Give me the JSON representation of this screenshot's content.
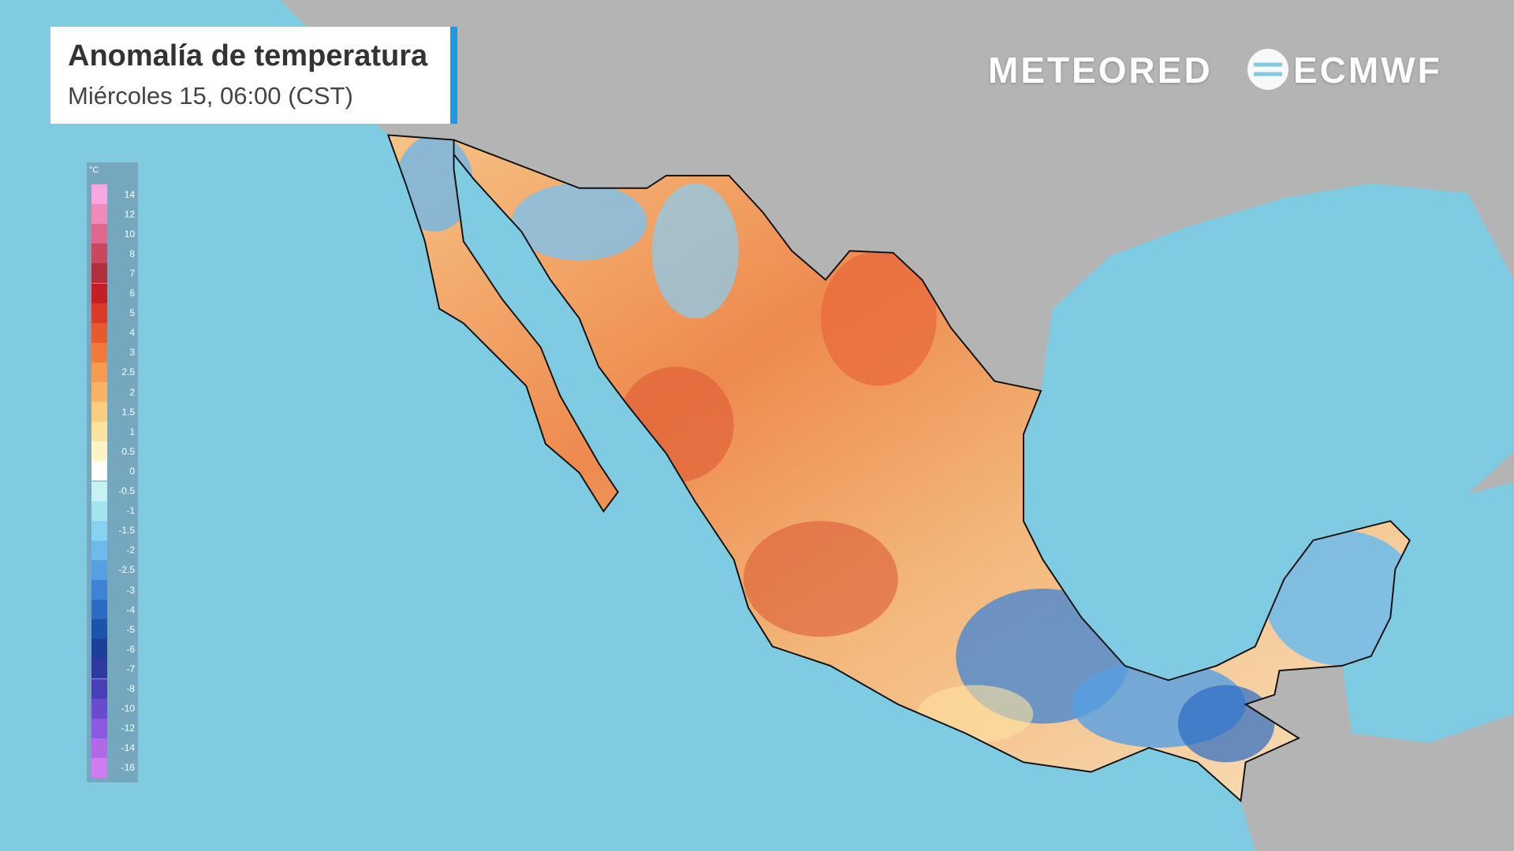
{
  "header": {
    "title": "Anomalía de temperatura",
    "subtitle": "Miércoles 15, 06:00 (CST)"
  },
  "brands": {
    "left": "METEORED",
    "right": "ECMWF"
  },
  "legend": {
    "unit": "°C",
    "items": [
      {
        "label": 14,
        "color": "#f7a8e0"
      },
      {
        "label": 12,
        "color": "#f08ab8"
      },
      {
        "label": 10,
        "color": "#e0688e"
      },
      {
        "label": 8,
        "color": "#c9485e"
      },
      {
        "label": 7,
        "color": "#b32f3e"
      },
      {
        "label": 6,
        "color": "#c41f24"
      },
      {
        "label": 5,
        "color": "#db3a26"
      },
      {
        "label": 4,
        "color": "#e85a2e"
      },
      {
        "label": 3,
        "color": "#f07a3a"
      },
      {
        "label": 2.5,
        "color": "#f59a4e"
      },
      {
        "label": 2,
        "color": "#f8b464"
      },
      {
        "label": 1.5,
        "color": "#fbcd80"
      },
      {
        "label": 1,
        "color": "#fde3a0"
      },
      {
        "label": 0.5,
        "color": "#fff3c8"
      },
      {
        "label": 0,
        "color": "#ffffff"
      },
      {
        "label": -0.5,
        "color": "#c8f1f2"
      },
      {
        "label": -1,
        "color": "#a4e4ef"
      },
      {
        "label": -1.5,
        "color": "#86d2ef"
      },
      {
        "label": -2,
        "color": "#6bbbed"
      },
      {
        "label": -2.5,
        "color": "#559fe2"
      },
      {
        "label": -3,
        "color": "#3f84d4"
      },
      {
        "label": -4,
        "color": "#2b6bc3"
      },
      {
        "label": -5,
        "color": "#1d54ab"
      },
      {
        "label": -6,
        "color": "#1c3f98"
      },
      {
        "label": -7,
        "color": "#2f3a9e"
      },
      {
        "label": -8,
        "color": "#4a3fb4"
      },
      {
        "label": -10,
        "color": "#6a4bcd"
      },
      {
        "label": -12,
        "color": "#8c5ae0"
      },
      {
        "label": -14,
        "color": "#b06ae8"
      },
      {
        "label": -16,
        "color": "#d07cf0"
      }
    ]
  }
}
